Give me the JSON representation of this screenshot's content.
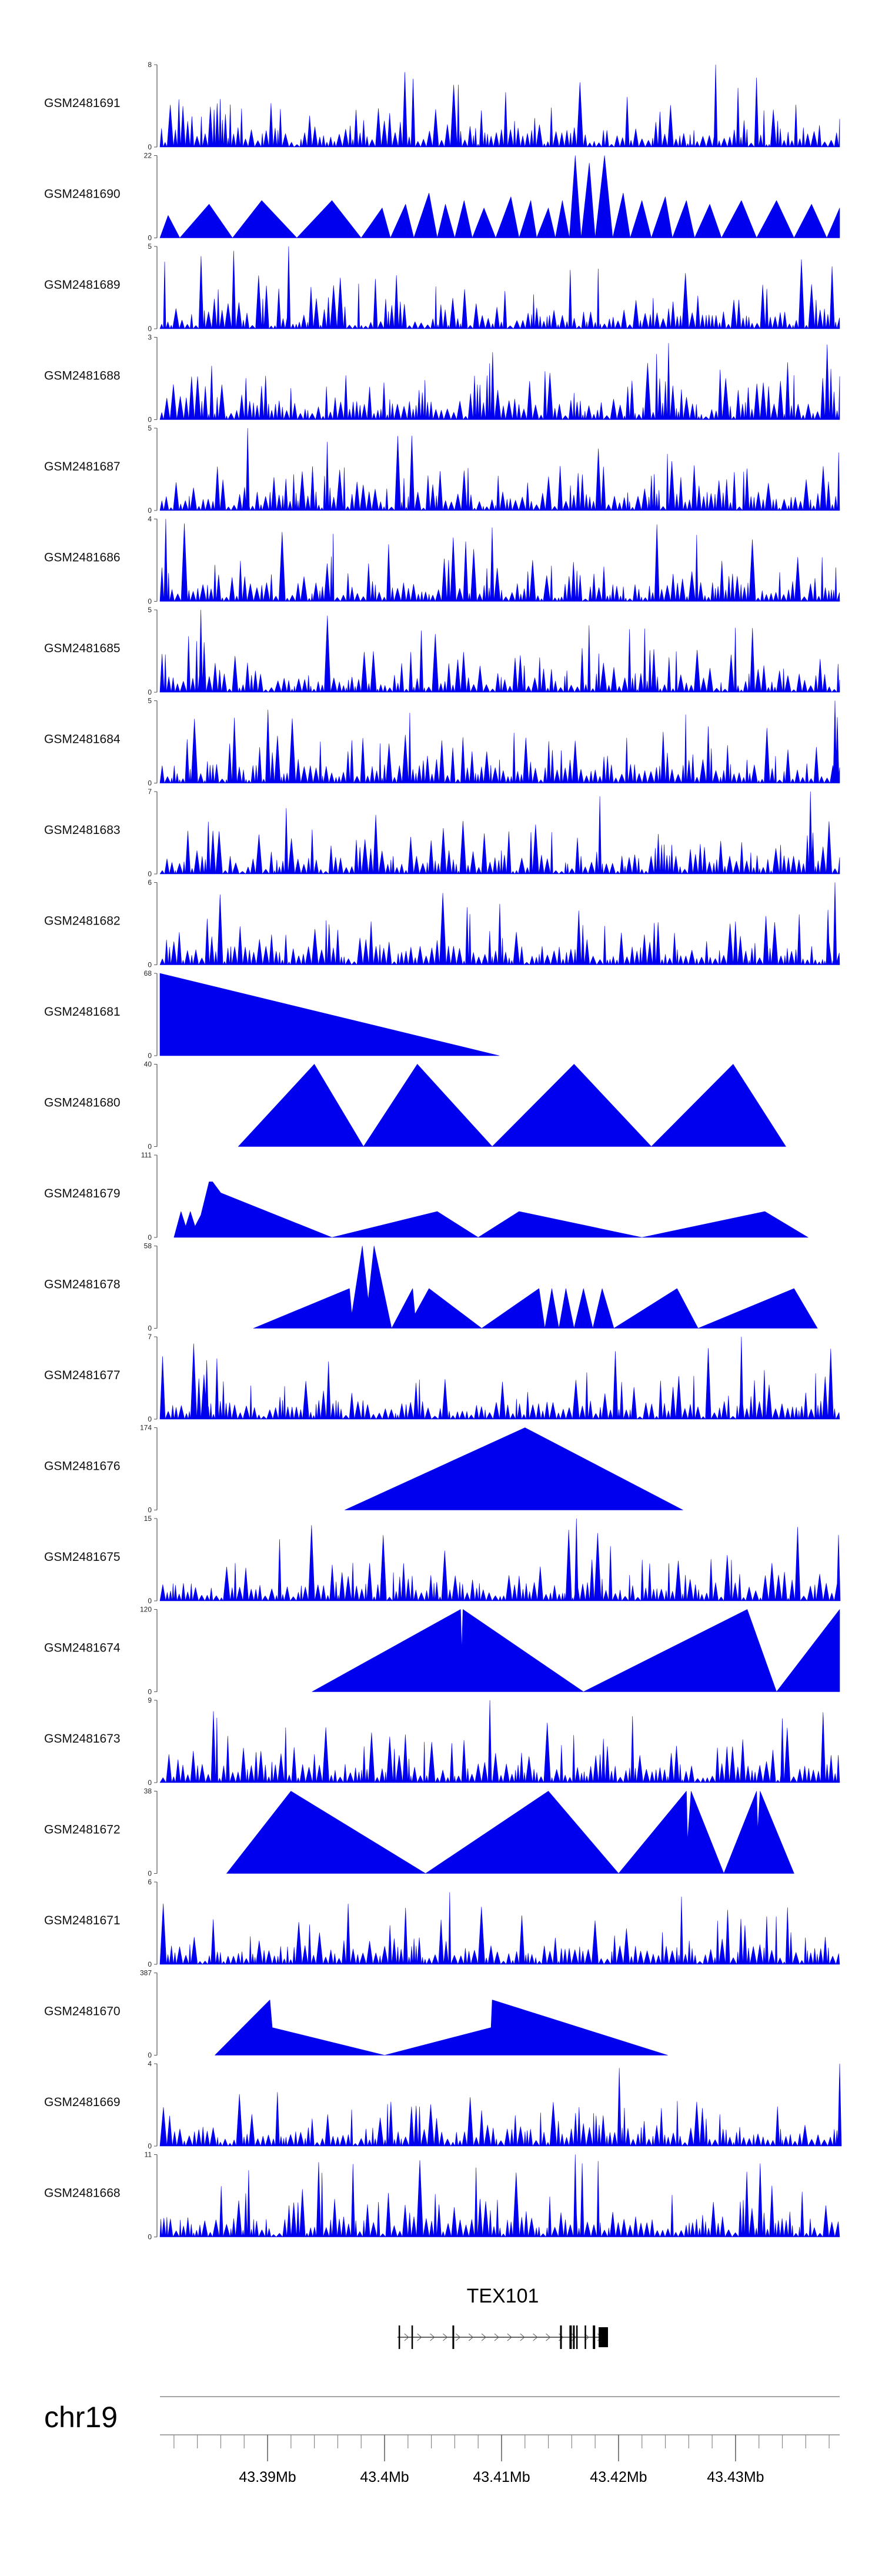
{
  "chart_data": {
    "type": "area",
    "genome": {
      "chromosome": "chr19",
      "x_range_mb": [
        43.3808,
        43.4389
      ],
      "major_ticks": [
        43.39,
        43.4,
        43.41,
        43.42,
        43.43
      ],
      "major_tick_labels": [
        "43.39Mb",
        "43.4Mb",
        "43.41Mb",
        "43.42Mb",
        "43.43Mb"
      ],
      "minor_tick_step_mb": 0.002
    },
    "gene": {
      "name": "TEX101",
      "start_mb": 43.4011,
      "end_mb": 43.4191,
      "exons_mb": [
        [
          43.4012,
          43.40125
        ],
        [
          43.4023,
          43.40235
        ],
        [
          43.4058,
          43.40595
        ],
        [
          43.415,
          43.41515
        ],
        [
          43.4158,
          43.416
        ],
        [
          43.4161,
          43.41625
        ],
        [
          43.41638,
          43.41648
        ],
        [
          43.4171,
          43.41715
        ],
        [
          43.4178,
          43.418
        ],
        [
          43.4183,
          43.4191
        ]
      ]
    },
    "fill_color": "#0000ee",
    "series": [
      {
        "name": "GSM2481691",
        "ymax": 8,
        "pattern": "dense",
        "seed": 101,
        "spikes": [
          [
            43.4283,
            8
          ]
        ]
      },
      {
        "name": "GSM2481690",
        "ymax": 22,
        "pattern": "peaks",
        "peaks": [
          [
            43.3808,
            0
          ],
          [
            43.3815,
            6
          ],
          [
            43.3825,
            0
          ],
          [
            43.385,
            9
          ],
          [
            43.387,
            0
          ],
          [
            43.3895,
            10
          ],
          [
            43.3925,
            0
          ],
          [
            43.3955,
            10
          ],
          [
            43.398,
            0
          ],
          [
            43.3998,
            8
          ],
          [
            43.4005,
            0
          ],
          [
            43.4018,
            9
          ],
          [
            43.4025,
            0
          ],
          [
            43.4038,
            12
          ],
          [
            43.4045,
            0
          ],
          [
            43.4052,
            9
          ],
          [
            43.406,
            0
          ],
          [
            43.4068,
            10
          ],
          [
            43.4075,
            0
          ],
          [
            43.4085,
            8
          ],
          [
            43.4095,
            0
          ],
          [
            43.4108,
            11
          ],
          [
            43.4115,
            0
          ],
          [
            43.4125,
            10
          ],
          [
            43.413,
            0
          ],
          [
            43.414,
            8
          ],
          [
            43.4146,
            0
          ],
          [
            43.4152,
            10
          ],
          [
            43.4158,
            0
          ],
          [
            43.4163,
            22
          ],
          [
            43.4168,
            0
          ],
          [
            43.4175,
            20
          ],
          [
            43.418,
            0
          ],
          [
            43.4188,
            22
          ],
          [
            43.4195,
            0
          ],
          [
            43.4204,
            12
          ],
          [
            43.421,
            0
          ],
          [
            43.422,
            10
          ],
          [
            43.4228,
            0
          ],
          [
            43.424,
            11
          ],
          [
            43.4246,
            0
          ],
          [
            43.4258,
            10
          ],
          [
            43.4265,
            0
          ],
          [
            43.4278,
            9
          ],
          [
            43.4288,
            0
          ],
          [
            43.4305,
            10
          ],
          [
            43.4318,
            0
          ],
          [
            43.4335,
            10
          ],
          [
            43.435,
            0
          ],
          [
            43.4365,
            9
          ],
          [
            43.4378,
            0
          ],
          [
            43.4389,
            8
          ]
        ]
      },
      {
        "name": "GSM2481689",
        "ymax": 5,
        "pattern": "dense",
        "seed": 202,
        "spikes": [
          [
            43.3918,
            5
          ]
        ]
      },
      {
        "name": "GSM2481688",
        "ymax": 3,
        "pattern": "dense",
        "seed": 303,
        "spikes": []
      },
      {
        "name": "GSM2481687",
        "ymax": 5,
        "pattern": "dense",
        "seed": 404,
        "spikes": [
          [
            43.3883,
            5
          ]
        ]
      },
      {
        "name": "GSM2481686",
        "ymax": 4,
        "pattern": "dense",
        "seed": 505,
        "spikes": [
          [
            43.3813,
            4
          ]
        ]
      },
      {
        "name": "GSM2481685",
        "ymax": 5,
        "pattern": "dense",
        "seed": 606,
        "spikes": [
          [
            43.3843,
            5
          ]
        ]
      },
      {
        "name": "GSM2481684",
        "ymax": 5,
        "pattern": "dense",
        "seed": 707,
        "spikes": [
          [
            43.4385,
            5
          ],
          [
            43.4387,
            4
          ]
        ]
      },
      {
        "name": "GSM2481683",
        "ymax": 7,
        "pattern": "dense",
        "seed": 808,
        "spikes": [
          [
            43.4364,
            7
          ]
        ]
      },
      {
        "name": "GSM2481682",
        "ymax": 6,
        "pattern": "dense",
        "seed": 909,
        "spikes": [
          [
            43.4385,
            6
          ],
          [
            43.4379,
            4
          ]
        ]
      },
      {
        "name": "GSM2481681",
        "ymax": 68,
        "pattern": "peaks",
        "peaks": [
          [
            43.3808,
            68
          ],
          [
            43.4098,
            0
          ]
        ]
      },
      {
        "name": "GSM2481680",
        "ymax": 40,
        "pattern": "peaks",
        "peaks": [
          [
            43.3875,
            0
          ],
          [
            43.394,
            40
          ],
          [
            43.3982,
            0
          ],
          [
            43.4028,
            40
          ],
          [
            43.4092,
            0
          ],
          [
            43.4162,
            40
          ],
          [
            43.4228,
            0
          ],
          [
            43.4298,
            40
          ],
          [
            43.4343,
            0
          ]
        ]
      },
      {
        "name": "GSM2481679",
        "ymax": 111,
        "pattern": "peaks",
        "peaks": [
          [
            43.382,
            0
          ],
          [
            43.3826,
            35
          ],
          [
            43.383,
            15
          ],
          [
            43.3834,
            35
          ],
          [
            43.3838,
            15
          ],
          [
            43.3843,
            30
          ],
          [
            43.385,
            75
          ],
          [
            43.3853,
            75
          ],
          [
            43.386,
            60
          ],
          [
            43.3955,
            0
          ],
          [
            43.4045,
            35
          ],
          [
            43.408,
            0
          ],
          [
            43.4115,
            35
          ],
          [
            43.422,
            0
          ],
          [
            43.4325,
            35
          ],
          [
            43.4362,
            0
          ]
        ]
      },
      {
        "name": "GSM2481678",
        "ymax": 58,
        "pattern": "peaks",
        "peaks": [
          [
            43.3888,
            0
          ],
          [
            43.397,
            28
          ],
          [
            43.3972,
            10
          ],
          [
            43.3981,
            58
          ],
          [
            43.3986,
            20
          ],
          [
            43.3991,
            58
          ],
          [
            43.3997,
            35
          ],
          [
            43.4006,
            0
          ],
          [
            43.4024,
            28
          ],
          [
            43.4026,
            10
          ],
          [
            43.4038,
            28
          ],
          [
            43.4083,
            0
          ],
          [
            43.4132,
            28
          ],
          [
            43.4137,
            0
          ],
          [
            43.4143,
            28
          ],
          [
            43.4149,
            0
          ],
          [
            43.4155,
            28
          ],
          [
            43.4162,
            0
          ],
          [
            43.417,
            28
          ],
          [
            43.4178,
            0
          ],
          [
            43.4186,
            28
          ],
          [
            43.4196,
            0
          ],
          [
            43.425,
            28
          ],
          [
            43.4268,
            0
          ],
          [
            43.435,
            28
          ],
          [
            43.437,
            0
          ]
        ]
      },
      {
        "name": "GSM2481677",
        "ymax": 7,
        "pattern": "dense",
        "seed": 1111,
        "spikes": [
          [
            43.3848,
            5
          ],
          [
            43.4305,
            7
          ]
        ]
      },
      {
        "name": "GSM2481676",
        "ymax": 174,
        "pattern": "peaks",
        "peaks": [
          [
            43.3966,
            0
          ],
          [
            43.412,
            174
          ],
          [
            43.4255,
            0
          ]
        ]
      },
      {
        "name": "GSM2481675",
        "ymax": 15,
        "pattern": "dense",
        "seed": 1313,
        "spikes": [
          [
            43.4164,
            15
          ],
          [
            43.4388,
            12
          ]
        ]
      },
      {
        "name": "GSM2481674",
        "ymax": 120,
        "pattern": "peaks",
        "peaks": [
          [
            43.3938,
            0
          ],
          [
            43.4065,
            120
          ],
          [
            43.4066,
            60
          ],
          [
            43.4067,
            120
          ],
          [
            43.417,
            0
          ],
          [
            43.431,
            120
          ],
          [
            43.4335,
            0
          ],
          [
            43.4389,
            120
          ]
        ]
      },
      {
        "name": "GSM2481673",
        "ymax": 9,
        "pattern": "dense",
        "seed": 1515,
        "spikes": [
          [
            43.409,
            9
          ],
          [
            43.434,
            7
          ]
        ]
      },
      {
        "name": "GSM2481672",
        "ymax": 38,
        "pattern": "peaks",
        "peaks": [
          [
            43.3865,
            0
          ],
          [
            43.392,
            38
          ],
          [
            43.4035,
            0
          ],
          [
            43.414,
            38
          ],
          [
            43.42,
            0
          ],
          [
            43.4258,
            38
          ],
          [
            43.4259,
            15
          ],
          [
            43.4262,
            38
          ],
          [
            43.429,
            0
          ],
          [
            43.4318,
            38
          ],
          [
            43.4319,
            20
          ],
          [
            43.4321,
            38
          ],
          [
            43.435,
            0
          ]
        ]
      },
      {
        "name": "GSM2481671",
        "ymax": 6,
        "pattern": "dense",
        "seed": 1717,
        "spikes": []
      },
      {
        "name": "GSM2481670",
        "ymax": 387,
        "pattern": "peaks",
        "peaks": [
          [
            43.3855,
            0
          ],
          [
            43.3902,
            260
          ],
          [
            43.3904,
            130
          ],
          [
            43.4,
            0
          ],
          [
            43.4091,
            130
          ],
          [
            43.4092,
            260
          ],
          [
            43.4242,
            0
          ]
        ]
      },
      {
        "name": "GSM2481669",
        "ymax": 4,
        "pattern": "dense",
        "seed": 1919,
        "spikes": [
          [
            43.4389,
            4
          ]
        ]
      },
      {
        "name": "GSM2481668",
        "ymax": 11,
        "pattern": "dense",
        "seed": 2020,
        "spikes": [
          [
            43.4163,
            11
          ]
        ]
      }
    ]
  }
}
